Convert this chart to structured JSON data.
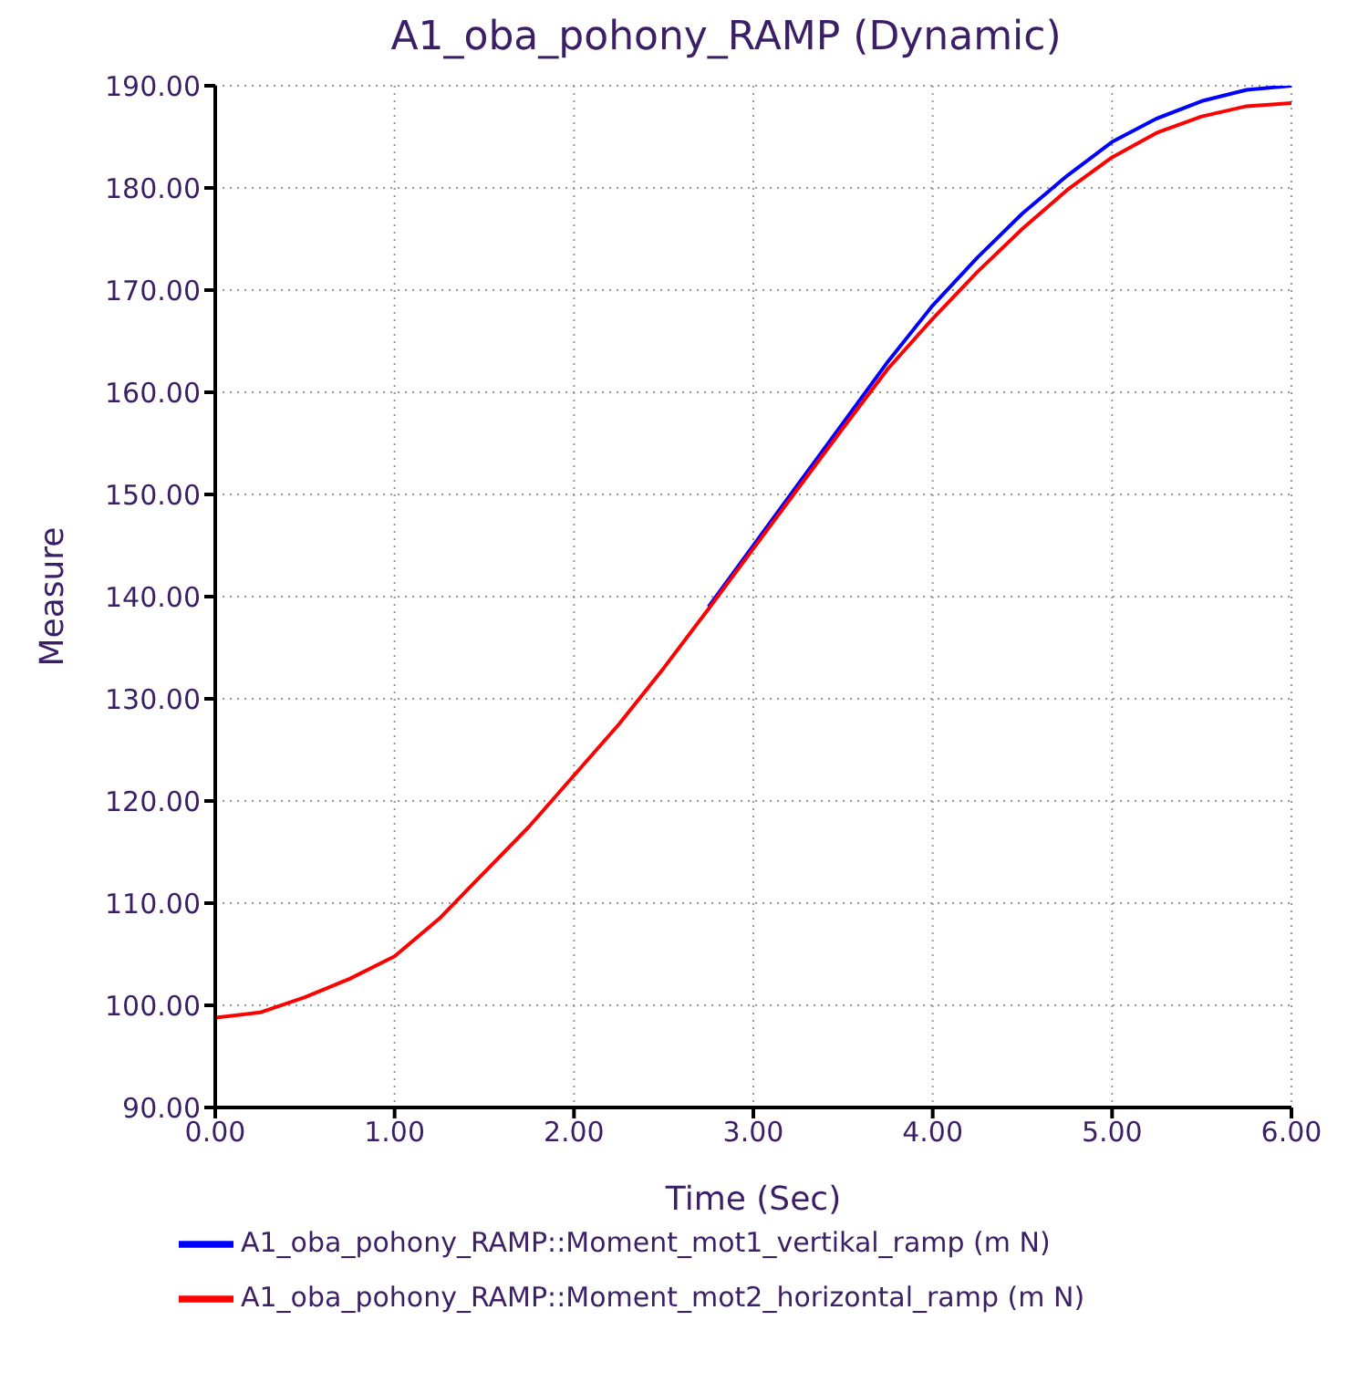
{
  "chart_data": {
    "type": "line",
    "title": "A1_oba_pohony_RAMP (Dynamic)",
    "xlabel": "Time (Sec)",
    "ylabel": "Measure",
    "x": [
      0,
      0.25,
      0.5,
      0.75,
      1,
      1.25,
      1.5,
      1.75,
      2,
      2.25,
      2.5,
      2.75,
      3,
      3.25,
      3.5,
      3.75,
      4,
      4.25,
      4.5,
      4.75,
      5,
      5.25,
      5.5,
      5.75,
      6
    ],
    "series": [
      {
        "name": "A1_oba_pohony_RAMP::Moment_mot1_vertikal_ramp (m N)",
        "color": "#0000ff",
        "values": [
          null,
          null,
          null,
          null,
          null,
          null,
          null,
          null,
          null,
          null,
          null,
          139,
          145,
          151,
          157,
          163,
          168.5,
          173.2,
          177.5,
          181.2,
          184.5,
          186.8,
          188.5,
          189.6,
          190
        ]
      },
      {
        "name": "A1_oba_pohony_RAMP::Moment_mot2_horizontal_ramp (m N)",
        "color": "#ff0000",
        "values": [
          98.8,
          99.3,
          100.8,
          102.6,
          104.8,
          108.5,
          113,
          117.5,
          122.5,
          127.5,
          133,
          138.8,
          144.7,
          150.6,
          156.5,
          162.3,
          167.2,
          171.8,
          176,
          179.8,
          183,
          185.4,
          187,
          188,
          188.3
        ]
      }
    ],
    "xlim": [
      0,
      6
    ],
    "xticks": [
      {
        "value": 0,
        "label": "0.00"
      },
      {
        "value": 1,
        "label": "1.00"
      },
      {
        "value": 2,
        "label": "2.00"
      },
      {
        "value": 3,
        "label": "3.00"
      },
      {
        "value": 4,
        "label": "4.00"
      },
      {
        "value": 5,
        "label": "5.00"
      },
      {
        "value": 6,
        "label": "6.00"
      }
    ],
    "ylim": [
      90,
      190
    ],
    "yticks": [
      {
        "value": 90,
        "label": "90.00"
      },
      {
        "value": 100,
        "label": "100.00"
      },
      {
        "value": 110,
        "label": "110.00"
      },
      {
        "value": 120,
        "label": "120.00"
      },
      {
        "value": 130,
        "label": "130.00"
      },
      {
        "value": 140,
        "label": "140.00"
      },
      {
        "value": 150,
        "label": "150.00"
      },
      {
        "value": 160,
        "label": "160.00"
      },
      {
        "value": 170,
        "label": "170.00"
      },
      {
        "value": 180,
        "label": "180.00"
      },
      {
        "value": 190,
        "label": "190.00"
      }
    ],
    "grid": true,
    "legend": "bottom",
    "marker": "none",
    "line_style": "solid"
  }
}
